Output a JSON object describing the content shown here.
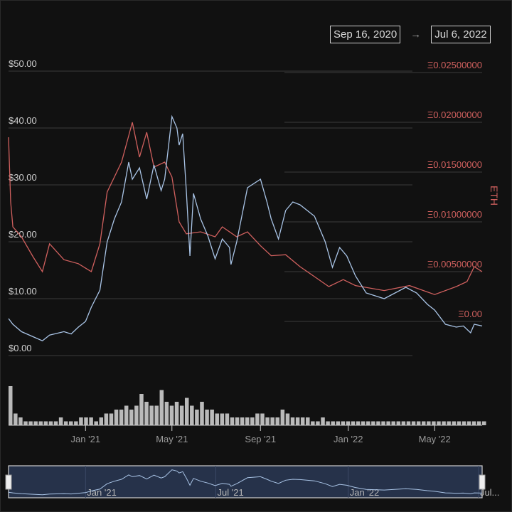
{
  "date_range": {
    "start": "Sep 16, 2020",
    "arrow": "→",
    "end": "Jul 6, 2022"
  },
  "colors": {
    "usd": "#a9c4e6",
    "eth": "#d0605e",
    "grid": "#3a3a3a",
    "volume": "#d8d8d8",
    "navigator_bg": "#26324a"
  },
  "chart_data": {
    "type": "line",
    "title": "",
    "x_range": [
      "2020-09-16",
      "2022-07-06"
    ],
    "left_axis": {
      "label": "",
      "ylim": [
        0,
        50
      ],
      "ticks": [
        "$0.00",
        "$10.00",
        "$20.00",
        "$30.00",
        "$40.00",
        "$50.00"
      ],
      "tick_values": [
        0,
        10,
        20,
        30,
        40,
        50
      ]
    },
    "right_axis": {
      "label": "ETH",
      "ylim": [
        0,
        0.025
      ],
      "ticks": [
        "Ξ0.00",
        "Ξ0.00500000",
        "Ξ0.01000000",
        "Ξ0.01500000",
        "Ξ0.02000000",
        "Ξ0.02500000"
      ],
      "tick_values": [
        0,
        0.005,
        0.01,
        0.015,
        0.02,
        0.025
      ]
    },
    "x_ticks": [
      {
        "label": "Jan '21",
        "date": "2021-01-01"
      },
      {
        "label": "May '21",
        "date": "2021-05-01"
      },
      {
        "label": "Sep '21",
        "date": "2021-09-01"
      },
      {
        "label": "Jan '22",
        "date": "2022-01-01"
      },
      {
        "label": "May '22",
        "date": "2022-05-01"
      }
    ],
    "series": [
      {
        "name": "USD",
        "axis": "left",
        "points": [
          [
            "2020-09-16",
            6.5
          ],
          [
            "2020-09-22",
            5.5
          ],
          [
            "2020-10-04",
            4.2
          ],
          [
            "2020-11-02",
            2.6
          ],
          [
            "2020-11-12",
            3.6
          ],
          [
            "2020-12-02",
            4.2
          ],
          [
            "2020-12-12",
            3.8
          ],
          [
            "2020-12-22",
            5.0
          ],
          [
            "2021-01-01",
            6.0
          ],
          [
            "2021-01-09",
            8.5
          ],
          [
            "2021-01-21",
            11.5
          ],
          [
            "2021-01-31",
            20.0
          ],
          [
            "2021-02-10",
            24.0
          ],
          [
            "2021-02-20",
            27.0
          ],
          [
            "2021-03-02",
            34.0
          ],
          [
            "2021-03-07",
            31.0
          ],
          [
            "2021-03-17",
            33.0
          ],
          [
            "2021-03-27",
            27.5
          ],
          [
            "2021-04-06",
            33.5
          ],
          [
            "2021-04-16",
            29.0
          ],
          [
            "2021-04-21",
            31.0
          ],
          [
            "2021-05-01",
            42.0
          ],
          [
            "2021-05-08",
            40.0
          ],
          [
            "2021-05-11",
            37.0
          ],
          [
            "2021-05-16",
            39.0
          ],
          [
            "2021-05-21",
            29.0
          ],
          [
            "2021-05-26",
            17.5
          ],
          [
            "2021-05-31",
            28.5
          ],
          [
            "2021-06-10",
            24.0
          ],
          [
            "2021-06-20",
            21.0
          ],
          [
            "2021-06-30",
            17.0
          ],
          [
            "2021-07-10",
            20.5
          ],
          [
            "2021-07-20",
            19.0
          ],
          [
            "2021-07-22",
            16.0
          ],
          [
            "2021-07-30",
            20.0
          ],
          [
            "2021-08-14",
            29.5
          ],
          [
            "2021-09-01",
            31.0
          ],
          [
            "2021-09-10",
            27.0
          ],
          [
            "2021-09-16",
            24.0
          ],
          [
            "2021-09-26",
            20.5
          ],
          [
            "2021-10-06",
            25.5
          ],
          [
            "2021-10-16",
            27.0
          ],
          [
            "2021-10-26",
            26.5
          ],
          [
            "2021-11-15",
            24.5
          ],
          [
            "2021-11-30",
            20.0
          ],
          [
            "2021-12-10",
            15.5
          ],
          [
            "2021-12-20",
            19.0
          ],
          [
            "2021-12-30",
            17.5
          ],
          [
            "2022-01-11",
            14.0
          ],
          [
            "2022-01-26",
            11.0
          ],
          [
            "2022-02-20",
            10.0
          ],
          [
            "2022-03-22",
            12.0
          ],
          [
            "2022-04-06",
            11.0
          ],
          [
            "2022-04-21",
            9.0
          ],
          [
            "2022-05-01",
            8.0
          ],
          [
            "2022-05-16",
            5.5
          ],
          [
            "2022-05-31",
            5.0
          ],
          [
            "2022-06-10",
            5.2
          ],
          [
            "2022-06-20",
            4.0
          ],
          [
            "2022-06-25",
            5.5
          ],
          [
            "2022-07-06",
            5.2
          ]
        ]
      },
      {
        "name": "ETH",
        "axis": "right",
        "points": [
          [
            "2020-09-16",
            0.0185
          ],
          [
            "2020-09-19",
            0.012
          ],
          [
            "2020-09-22",
            0.0095
          ],
          [
            "2020-10-04",
            0.0085
          ],
          [
            "2020-10-20",
            0.0065
          ],
          [
            "2020-11-02",
            0.005
          ],
          [
            "2020-11-12",
            0.0078
          ],
          [
            "2020-12-02",
            0.0062
          ],
          [
            "2020-12-22",
            0.0058
          ],
          [
            "2021-01-09",
            0.005
          ],
          [
            "2021-01-21",
            0.0078
          ],
          [
            "2021-01-31",
            0.013
          ],
          [
            "2021-02-10",
            0.0145
          ],
          [
            "2021-02-20",
            0.016
          ],
          [
            "2021-03-07",
            0.02
          ],
          [
            "2021-03-17",
            0.0165
          ],
          [
            "2021-03-27",
            0.019
          ],
          [
            "2021-04-06",
            0.0155
          ],
          [
            "2021-04-21",
            0.016
          ],
          [
            "2021-05-01",
            0.0145
          ],
          [
            "2021-05-11",
            0.01
          ],
          [
            "2021-05-21",
            0.0088
          ],
          [
            "2021-06-10",
            0.009
          ],
          [
            "2021-06-30",
            0.0085
          ],
          [
            "2021-07-10",
            0.0095
          ],
          [
            "2021-07-30",
            0.0085
          ],
          [
            "2021-08-14",
            0.009
          ],
          [
            "2021-09-01",
            0.0076
          ],
          [
            "2021-09-16",
            0.0066
          ],
          [
            "2021-10-06",
            0.0067
          ],
          [
            "2021-10-26",
            0.0055
          ],
          [
            "2021-11-15",
            0.0045
          ],
          [
            "2021-12-05",
            0.0035
          ],
          [
            "2021-12-25",
            0.0042
          ],
          [
            "2022-01-11",
            0.0036
          ],
          [
            "2022-02-20",
            0.0031
          ],
          [
            "2022-03-27",
            0.0036
          ],
          [
            "2022-05-01",
            0.0027
          ],
          [
            "2022-05-31",
            0.0035
          ],
          [
            "2022-06-15",
            0.004
          ],
          [
            "2022-06-25",
            0.0055
          ],
          [
            "2022-07-06",
            0.005
          ]
        ]
      }
    ],
    "volume": {
      "name": "Volume",
      "start": "2020-09-16",
      "interval_days": 7,
      "values": [
        10,
        3,
        2,
        1,
        1,
        1,
        1,
        1,
        1,
        1,
        2,
        1,
        1,
        1,
        2,
        2,
        2,
        1,
        2,
        3,
        3,
        4,
        4,
        5,
        4,
        5,
        8,
        6,
        5,
        5,
        9,
        6,
        5,
        6,
        5,
        7,
        5,
        4,
        6,
        4,
        4,
        3,
        3,
        3,
        2,
        2,
        2,
        2,
        2,
        3,
        3,
        2,
        2,
        2,
        4,
        3,
        2,
        2,
        2,
        2,
        1,
        1,
        2,
        1,
        1,
        1,
        1,
        1,
        1,
        1,
        1,
        1,
        1,
        1,
        1,
        1,
        1,
        1,
        1,
        1,
        1,
        1,
        1,
        1,
        1,
        1,
        1,
        1,
        1,
        1,
        1,
        1,
        1,
        1,
        1
      ]
    },
    "grid": true,
    "legend": "none"
  },
  "navigator": {
    "ticks": [
      {
        "label": "Jan '21",
        "date": "2021-01-01"
      },
      {
        "label": "Jul '21",
        "date": "2021-07-01"
      },
      {
        "label": "Jan '22",
        "date": "2022-01-01"
      },
      {
        "label": "Jul...",
        "date": "2022-07-01"
      }
    ]
  }
}
